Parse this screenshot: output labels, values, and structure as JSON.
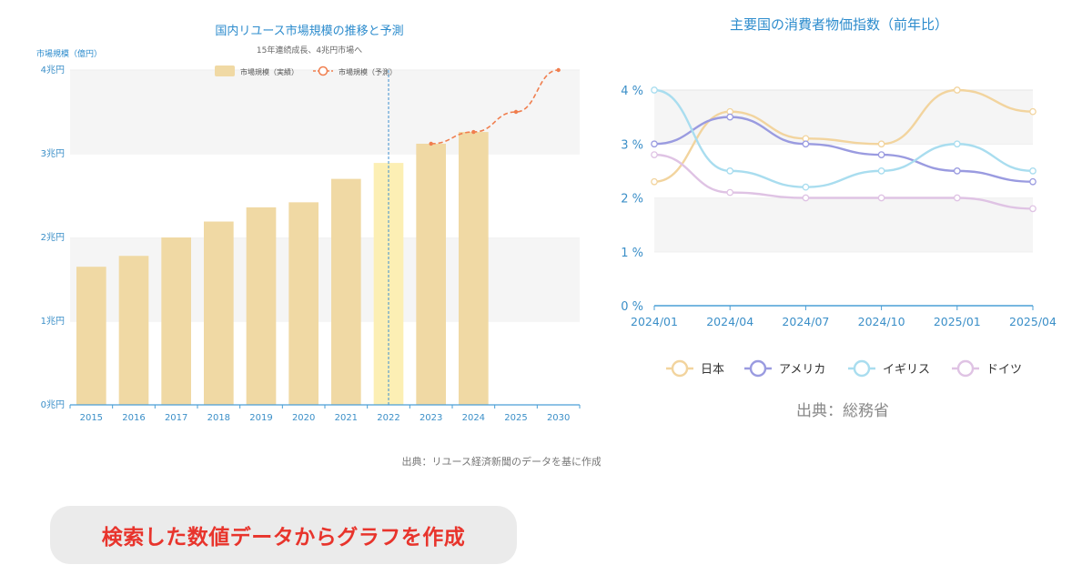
{
  "charts": {
    "left": {
      "title": "国内リユース市場規模の推移と予測",
      "subtitle": "15年連続成長、4兆円市場へ",
      "ylabel": "市場規模（億円）",
      "source": "出典：リユース経済新聞のデータを基に作成"
    },
    "right": {
      "title": "主要国の消費者物価指数（前年比）",
      "source": "出典：総務省"
    }
  },
  "callout": {
    "text": "検索した数値データからグラフを作成"
  },
  "colors": {
    "bar": "#f0d9a4",
    "bar_highlight": "#fcefb4",
    "forecast": "#f07e4e",
    "axis": "#4a9fd6",
    "tick_text": "#3b8fc8",
    "japan": "#f2d49e",
    "usa": "#9a9be0",
    "uk": "#a9ddef",
    "germany": "#dfc3e4"
  },
  "chart_data": [
    {
      "type": "bar",
      "title": "国内リユース市場規模の推移と予測",
      "subtitle": "15年連続成長、4兆円市場へ",
      "ylabel": "市場規模（億円）",
      "categories": [
        "2015",
        "2016",
        "2017",
        "2018",
        "2019",
        "2020",
        "2021",
        "2022",
        "2023",
        "2024",
        "2025",
        "2030"
      ],
      "yticks": [
        "0兆円",
        "1兆円",
        "2兆円",
        "3兆円",
        "4兆円"
      ],
      "ylim": [
        0,
        40000
      ],
      "series": [
        {
          "name": "市場規模（実績）",
          "type": "bar",
          "values": [
            16500,
            17800,
            20000,
            21900,
            23600,
            24200,
            27000,
            28900,
            31200,
            32600,
            null,
            null
          ]
        },
        {
          "name": "市場規模（予測）",
          "type": "line",
          "values": [
            null,
            null,
            null,
            null,
            null,
            null,
            null,
            null,
            31200,
            32600,
            35000,
            40000
          ]
        }
      ],
      "highlight_category": "2022",
      "legend": "top-center",
      "grid": true
    },
    {
      "type": "line",
      "title": "主要国の消費者物価指数（前年比）",
      "x": [
        "2024/01",
        "2024/04",
        "2024/07",
        "2024/10",
        "2025/01",
        "2025/04"
      ],
      "yticks": [
        "0 %",
        "1 %",
        "2 %",
        "3 %",
        "4 %"
      ],
      "ylim": [
        0,
        4
      ],
      "series": [
        {
          "name": "日本",
          "values": [
            2.3,
            3.6,
            3.1,
            3.0,
            4.0,
            3.6
          ]
        },
        {
          "name": "アメリカ",
          "values": [
            3.0,
            3.5,
            3.0,
            2.8,
            2.5,
            2.3
          ]
        },
        {
          "name": "イギリス",
          "values": [
            4.0,
            2.5,
            2.2,
            2.5,
            3.0,
            2.5
          ]
        },
        {
          "name": "ドイツ",
          "values": [
            2.8,
            2.1,
            2.0,
            2.0,
            2.0,
            1.8
          ]
        }
      ],
      "legend": "bottom",
      "grid": true
    }
  ]
}
